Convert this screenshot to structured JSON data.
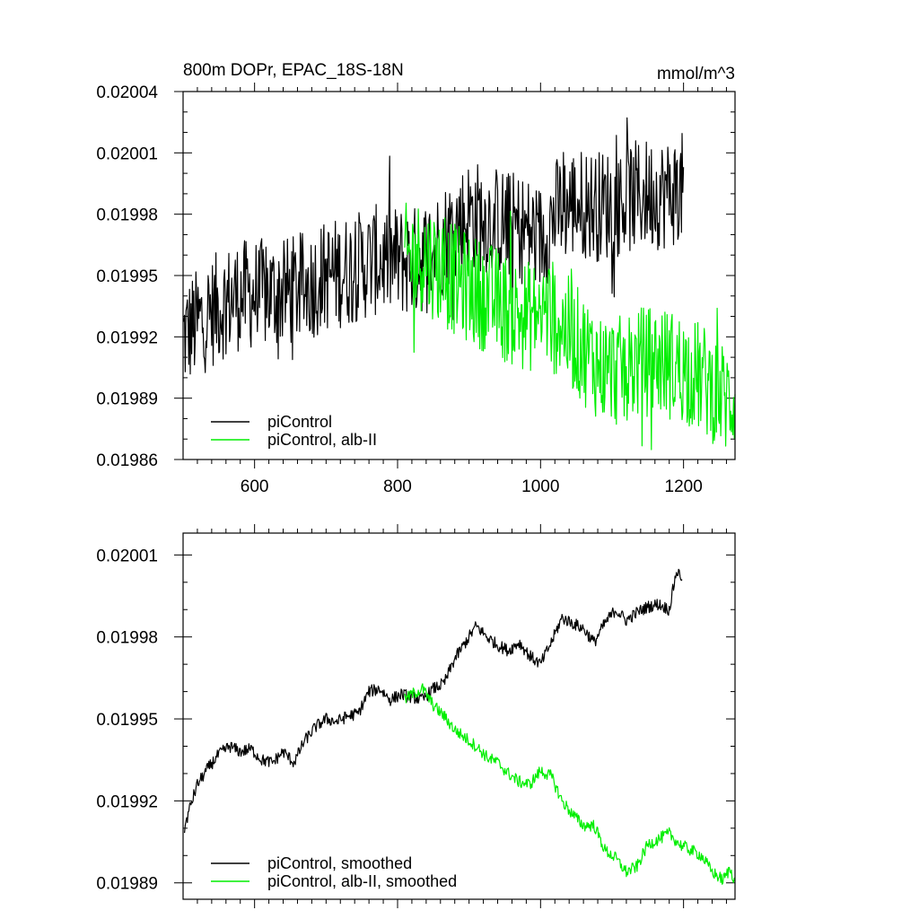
{
  "colors": {
    "control": "#000000",
    "experiment": "#00ee00"
  },
  "chart_data": [
    {
      "type": "line",
      "title": "800m DOPr, EPAC_18S-18N",
      "units": "mmol/m^3",
      "xlabel": "",
      "ylabel": "",
      "xlim": [
        500,
        1272
      ],
      "ylim": [
        0.01986,
        0.02004
      ],
      "x_ticks": [
        600,
        800,
        1000,
        1200
      ],
      "x_tick_labels": [
        "600",
        "800",
        "1000",
        "1200"
      ],
      "y_ticks": [
        0.01986,
        0.01989,
        0.01992,
        0.01995,
        0.01998,
        0.02001,
        0.02004
      ],
      "y_tick_labels": [
        "0.01986",
        "0.01989",
        "0.01992",
        "0.01995",
        "0.01998",
        "0.02001",
        "0.02004"
      ],
      "legend_position": "bottom-left",
      "series": [
        {
          "name": "piControl",
          "color": "#000000",
          "x": [
            500,
            525,
            550,
            575,
            600,
            625,
            650,
            675,
            700,
            725,
            750,
            775,
            800,
            825,
            850,
            875,
            900,
            925,
            950,
            975,
            1000,
            1025,
            1050,
            1075,
            1100,
            1125,
            1150,
            1175,
            1200
          ],
          "y": [
            0.01992,
            0.019928,
            0.019935,
            0.01994,
            0.019941,
            0.019941,
            0.019942,
            0.019945,
            0.01995,
            0.019952,
            0.019955,
            0.019958,
            0.019957,
            0.019957,
            0.019962,
            0.019972,
            0.01998,
            0.019978,
            0.019975,
            0.019973,
            0.019968,
            0.019982,
            0.019986,
            0.019984,
            0.019985,
            0.019988,
            0.01999,
            0.01999,
            0.019993
          ]
        },
        {
          "name": "piControl, alb-II",
          "color": "#00ee00",
          "x": [
            810,
            835,
            860,
            885,
            910,
            935,
            960,
            985,
            1010,
            1035,
            1060,
            1085,
            1110,
            1135,
            1160,
            1185,
            1210,
            1235,
            1260,
            1272
          ],
          "y": [
            0.019958,
            0.01996,
            0.019953,
            0.019947,
            0.019942,
            0.019938,
            0.019932,
            0.01993,
            0.019933,
            0.019924,
            0.019914,
            0.019905,
            0.019903,
            0.019907,
            0.019909,
            0.019906,
            0.019903,
            0.019897,
            0.019889,
            0.019891
          ]
        }
      ]
    },
    {
      "type": "line",
      "title": "",
      "xlabel": "",
      "ylabel": "",
      "xlim": [
        500,
        1272
      ],
      "ylim": [
        0.019884,
        0.020018
      ],
      "x_ticks": [
        600,
        800,
        1000,
        1200
      ],
      "x_tick_labels": [],
      "y_ticks": [
        0.01989,
        0.01992,
        0.01995,
        0.01998,
        0.02001
      ],
      "y_tick_labels": [
        "0.01989",
        "0.01992",
        "0.01995",
        "0.01998",
        "0.02001"
      ],
      "legend_position": "bottom-left",
      "series": [
        {
          "name": "piControl, smoothed",
          "color": "#000000",
          "x": [
            502,
            510,
            520,
            535,
            550,
            565,
            580,
            595,
            610,
            625,
            640,
            655,
            670,
            685,
            700,
            715,
            730,
            745,
            760,
            775,
            790,
            805,
            820,
            835,
            850,
            865,
            880,
            895,
            910,
            925,
            940,
            955,
            970,
            985,
            1000,
            1015,
            1030,
            1045,
            1060,
            1075,
            1090,
            1105,
            1120,
            1135,
            1150,
            1165,
            1180,
            1190,
            1198
          ],
          "y": [
            0.01991,
            0.019918,
            0.019926,
            0.019932,
            0.019937,
            0.01994,
            0.019938,
            0.019939,
            0.019935,
            0.019934,
            0.019938,
            0.019934,
            0.019942,
            0.019947,
            0.01995,
            0.019949,
            0.019951,
            0.019952,
            0.01996,
            0.019961,
            0.019957,
            0.019959,
            0.019958,
            0.019957,
            0.019961,
            0.019963,
            0.019972,
            0.019978,
            0.019984,
            0.01998,
            0.019977,
            0.019975,
            0.019978,
            0.019973,
            0.01997,
            0.019978,
            0.019987,
            0.019985,
            0.019983,
            0.019978,
            0.019985,
            0.01999,
            0.019986,
            0.019989,
            0.019991,
            0.019992,
            0.01999,
            0.020004,
            0.020002
          ]
        },
        {
          "name": "piControl, alb-II, smoothed",
          "color": "#00ee00",
          "x": [
            810,
            820,
            835,
            850,
            865,
            880,
            895,
            910,
            925,
            940,
            955,
            970,
            985,
            1000,
            1015,
            1030,
            1045,
            1060,
            1075,
            1090,
            1105,
            1120,
            1135,
            1150,
            1165,
            1180,
            1195,
            1210,
            1225,
            1240,
            1255,
            1265,
            1272
          ],
          "y": [
            0.019957,
            0.019959,
            0.019961,
            0.019955,
            0.019951,
            0.019946,
            0.019943,
            0.01994,
            0.019936,
            0.019934,
            0.01993,
            0.019927,
            0.019926,
            0.019931,
            0.019929,
            0.01992,
            0.019915,
            0.019911,
            0.019911,
            0.019902,
            0.019899,
            0.019894,
            0.019896,
            0.019904,
            0.019906,
            0.019908,
            0.019904,
            0.019902,
            0.0199,
            0.019894,
            0.019891,
            0.019895,
            0.019891
          ]
        }
      ]
    }
  ]
}
